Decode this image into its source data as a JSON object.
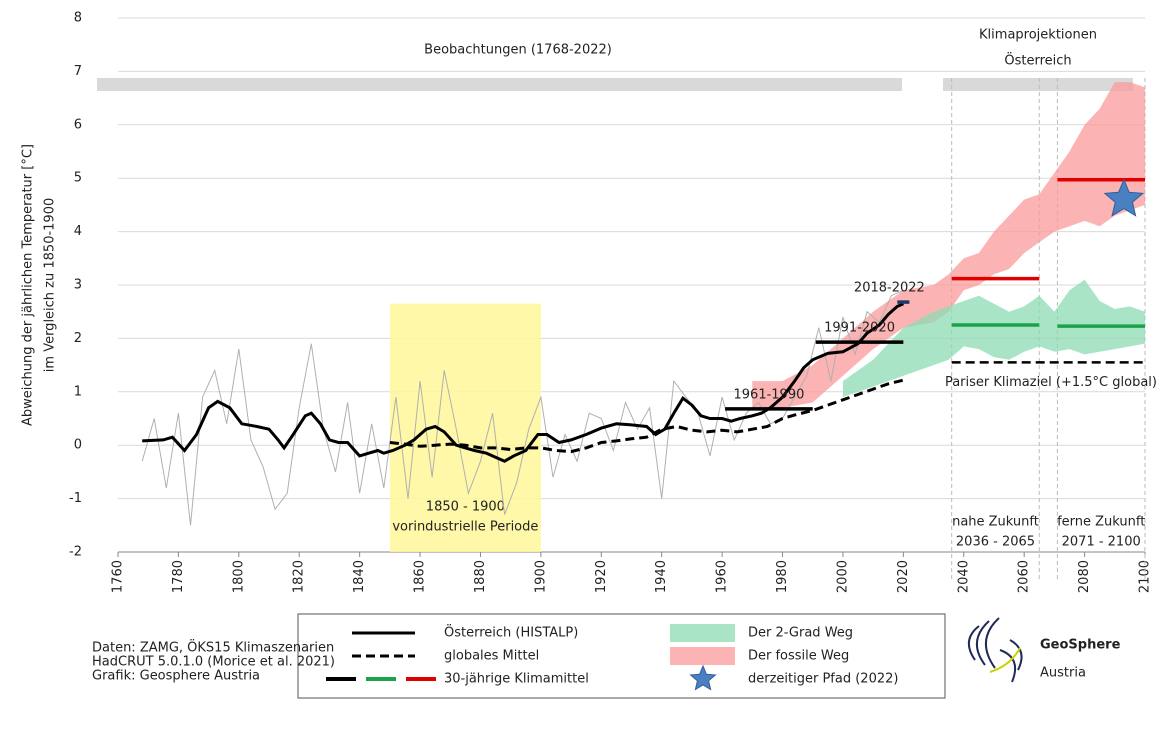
{
  "chart_data": {
    "type": "line",
    "ylabel": [
      "Abweichung der jährlichen Temperatur [°C]",
      "im Vergleich zu 1850-1900"
    ],
    "xlim": [
      1760,
      2100
    ],
    "ylim": [
      -2,
      8
    ],
    "xticks": [
      1760,
      1780,
      1800,
      1820,
      1840,
      1860,
      1880,
      1900,
      1920,
      1940,
      1960,
      1980,
      2000,
      2020,
      2040,
      2060,
      2080,
      2100
    ],
    "yticks": [
      -2,
      -1,
      0,
      1,
      2,
      3,
      4,
      5,
      6,
      7,
      8
    ],
    "grid": true,
    "observations_label": "Beobachtungen (1768-2022)",
    "projections_label": [
      "Klimaprojektionen",
      "Österreich"
    ],
    "annual": {
      "color": "#b0b0b0",
      "x": [
        1768,
        1772,
        1776,
        1780,
        1784,
        1788,
        1792,
        1796,
        1800,
        1804,
        1808,
        1812,
        1816,
        1820,
        1824,
        1828,
        1832,
        1836,
        1840,
        1844,
        1848,
        1852,
        1856,
        1860,
        1864,
        1868,
        1872,
        1876,
        1880,
        1884,
        1888,
        1892,
        1896,
        1900,
        1904,
        1908,
        1912,
        1916,
        1920,
        1924,
        1928,
        1932,
        1936,
        1940,
        1944,
        1948,
        1952,
        1956,
        1960,
        1964,
        1968,
        1972,
        1976,
        1980,
        1984,
        1988,
        1992,
        1996,
        2000,
        2004,
        2008,
        2012,
        2016,
        2020
      ],
      "values": [
        -0.3,
        0.5,
        -0.8,
        0.6,
        -1.5,
        0.9,
        1.4,
        0.4,
        1.8,
        0.1,
        -0.4,
        -1.2,
        -0.9,
        0.7,
        1.9,
        0.3,
        -0.5,
        0.8,
        -0.9,
        0.4,
        -0.8,
        0.9,
        -1.0,
        1.2,
        -0.6,
        1.4,
        0.3,
        -0.9,
        -0.3,
        0.6,
        -1.3,
        -0.7,
        0.3,
        0.9,
        -0.6,
        0.2,
        -0.3,
        0.6,
        0.5,
        -0.1,
        0.8,
        0.3,
        0.7,
        -1.0,
        1.2,
        0.9,
        0.6,
        -0.2,
        0.9,
        0.1,
        0.6,
        0.8,
        0.4,
        0.5,
        0.9,
        1.3,
        2.2,
        1.2,
        2.4,
        1.7,
        2.5,
        2.3,
        2.8,
        2.9
      ]
    },
    "series": [
      {
        "name": "Österreich (HISTALP)",
        "color": "#000000",
        "dash": false,
        "x": [
          1768,
          1775,
          1778,
          1782,
          1786,
          1790,
          1793,
          1797,
          1801,
          1806,
          1810,
          1813,
          1815,
          1818,
          1822,
          1824,
          1827,
          1830,
          1833,
          1836,
          1840,
          1843,
          1846,
          1848,
          1851,
          1855,
          1858,
          1862,
          1865,
          1868,
          1872,
          1875,
          1878,
          1882,
          1886,
          1888,
          1891,
          1895,
          1897,
          1899,
          1902,
          1906,
          1910,
          1915,
          1920,
          1925,
          1930,
          1935,
          1938,
          1941,
          1944,
          1947,
          1950,
          1953,
          1956,
          1960,
          1963,
          1966,
          1970,
          1973,
          1976,
          1980,
          1984,
          1987,
          1990,
          1995,
          2000,
          2005,
          2008,
          2012,
          2015,
          2018,
          2020
        ],
        "values": [
          0.08,
          0.1,
          0.15,
          -0.1,
          0.2,
          0.7,
          0.82,
          0.7,
          0.4,
          0.35,
          0.3,
          0.1,
          -0.05,
          0.2,
          0.55,
          0.6,
          0.4,
          0.1,
          0.05,
          0.05,
          -0.2,
          -0.15,
          -0.1,
          -0.15,
          -0.1,
          0.0,
          0.1,
          0.3,
          0.35,
          0.25,
          0.0,
          -0.05,
          -0.1,
          -0.15,
          -0.25,
          -0.3,
          -0.2,
          -0.1,
          0.05,
          0.2,
          0.2,
          0.05,
          0.1,
          0.2,
          0.32,
          0.4,
          0.38,
          0.35,
          0.2,
          0.3,
          0.6,
          0.88,
          0.75,
          0.55,
          0.5,
          0.5,
          0.45,
          0.5,
          0.55,
          0.6,
          0.7,
          0.9,
          1.2,
          1.45,
          1.6,
          1.72,
          1.75,
          1.9,
          2.1,
          2.25,
          2.45,
          2.6,
          2.65
        ]
      },
      {
        "name": "globales Mittel",
        "color": "#000000",
        "dash": true,
        "x": [
          1850,
          1855,
          1860,
          1865,
          1870,
          1875,
          1880,
          1885,
          1890,
          1895,
          1900,
          1905,
          1910,
          1915,
          1920,
          1925,
          1930,
          1935,
          1940,
          1945,
          1950,
          1955,
          1960,
          1965,
          1970,
          1975,
          1980,
          1985,
          1990,
          1995,
          2000,
          2005,
          2010,
          2015,
          2020
        ],
        "values": [
          0.05,
          0.02,
          -0.02,
          0.0,
          0.02,
          0.0,
          -0.05,
          -0.05,
          -0.08,
          -0.05,
          -0.05,
          -0.1,
          -0.12,
          -0.05,
          0.05,
          0.08,
          0.12,
          0.15,
          0.3,
          0.35,
          0.28,
          0.25,
          0.28,
          0.25,
          0.3,
          0.35,
          0.5,
          0.58,
          0.65,
          0.75,
          0.85,
          0.95,
          1.05,
          1.15,
          1.22
        ]
      }
    ],
    "bands": [
      {
        "name": "Der fossile Weg",
        "color": "#f99a9a",
        "x": [
          1970,
          1980,
          1990,
          2000,
          2010,
          2020,
          2030,
          2035,
          2040,
          2045,
          2050,
          2055,
          2060,
          2065,
          2070,
          2075,
          2080,
          2085,
          2090,
          2095,
          2100
        ],
        "low": [
          0.7,
          0.7,
          0.8,
          1.3,
          1.8,
          2.2,
          2.3,
          2.5,
          2.9,
          3.0,
          3.2,
          3.3,
          3.6,
          3.8,
          4.0,
          4.1,
          4.2,
          4.1,
          4.3,
          4.4,
          4.5
        ],
        "high": [
          1.2,
          1.2,
          1.5,
          2.0,
          2.5,
          2.9,
          3.0,
          3.2,
          3.5,
          3.6,
          4.0,
          4.3,
          4.6,
          4.7,
          5.1,
          5.5,
          6.0,
          6.3,
          6.8,
          6.8,
          6.7
        ]
      },
      {
        "name": "Der 2-Grad Weg",
        "color": "#8ddbb4",
        "x": [
          2000,
          2010,
          2020,
          2030,
          2035,
          2040,
          2045,
          2050,
          2055,
          2060,
          2065,
          2070,
          2075,
          2080,
          2085,
          2090,
          2095,
          2100
        ],
        "low": [
          0.9,
          1.1,
          1.3,
          1.5,
          1.6,
          1.85,
          1.8,
          1.65,
          1.6,
          1.75,
          1.85,
          1.75,
          1.8,
          1.7,
          1.75,
          1.8,
          1.85,
          1.9
        ],
        "high": [
          1.2,
          1.6,
          2.2,
          2.5,
          2.6,
          2.7,
          2.8,
          2.65,
          2.5,
          2.6,
          2.8,
          2.5,
          2.9,
          3.1,
          2.7,
          2.55,
          2.6,
          2.5
        ]
      }
    ],
    "climate_means": {
      "name": "30-jährige Klimamittel",
      "segments": [
        {
          "label": "1961-1990",
          "x": [
            1961,
            1990
          ],
          "value": 0.68,
          "color": "#000000"
        },
        {
          "label": "1991-2020",
          "x": [
            1991,
            2020
          ],
          "value": 1.93,
          "color": "#000000"
        },
        {
          "label": "2018-2022",
          "x": [
            2018,
            2022
          ],
          "value": 2.68,
          "color": "#1f3864"
        },
        {
          "x": [
            2036,
            2065
          ],
          "value": 3.12,
          "color": "#e00000"
        },
        {
          "x": [
            2036,
            2065
          ],
          "value": 2.25,
          "color": "#1aa34a"
        },
        {
          "x": [
            2071,
            2100
          ],
          "value": 4.97,
          "color": "#e00000"
        },
        {
          "x": [
            2071,
            2100
          ],
          "value": 2.23,
          "color": "#1aa34a"
        }
      ]
    },
    "paris": {
      "label": "Pariser Klimaziel (+1.5°C global)",
      "x": [
        2036,
        2100
      ],
      "value": 1.55,
      "color": "#000000"
    },
    "star": {
      "name": "derzeitiger Pfad (2022)",
      "x": 2093,
      "value": 4.6,
      "color": "#4a7fc1"
    },
    "reference_period": {
      "label": [
        "1850 - 1900",
        "vorindustrielle Periode"
      ],
      "x": [
        1850,
        1900
      ],
      "top": 2.65,
      "color": "#fff799"
    },
    "future_periods": [
      {
        "label": [
          "nahe Zukunft",
          "2036 - 2065"
        ],
        "x": [
          2036,
          2065
        ]
      },
      {
        "label": [
          "ferne Zukunft",
          "2071 - 2100"
        ],
        "x": [
          2071,
          2100
        ]
      }
    ]
  },
  "credits": [
    "Daten: ZAMG, ÖKS15 Klimaszenarien",
    "HadCRUT 5.0.1.0 (Morice et al. 2021)",
    "Grafik: Geosphere Austria"
  ],
  "logo": {
    "name": "GeoSphere",
    "sub": "Austria"
  }
}
